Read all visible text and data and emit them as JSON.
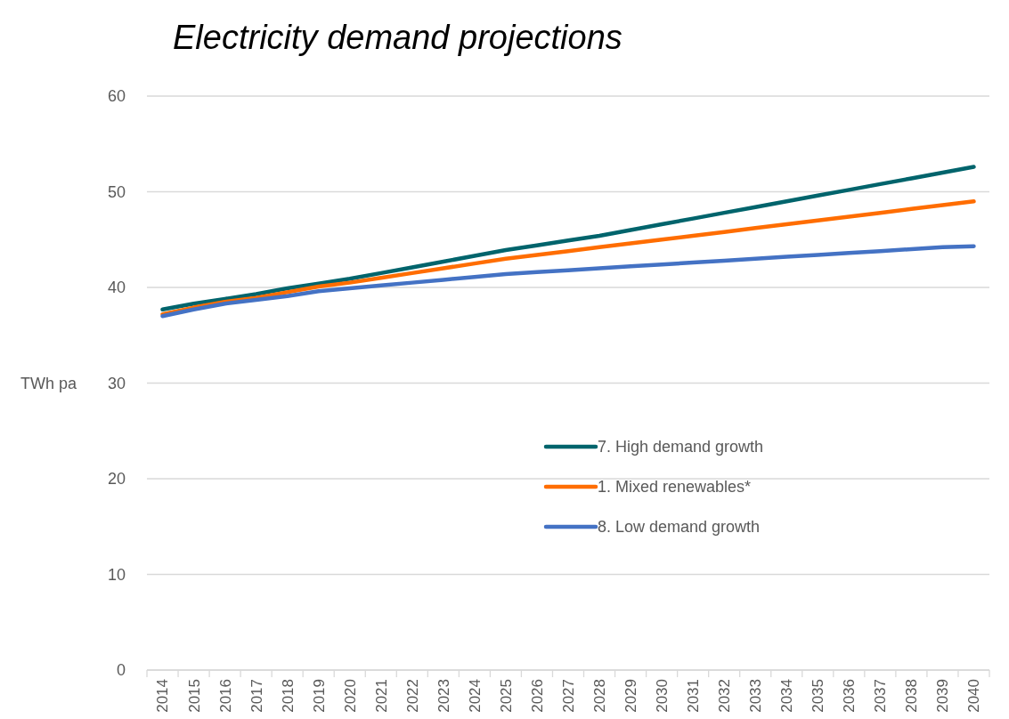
{
  "chart_data": {
    "type": "line",
    "title": "Electricity demand projections",
    "ylabel": "TWh pa",
    "categories": [
      "2014",
      "2015",
      "2016",
      "2017",
      "2018",
      "2019",
      "2020",
      "2021",
      "2022",
      "2023",
      "2024",
      "2025",
      "2026",
      "2027",
      "2028",
      "2029",
      "2030",
      "2031",
      "2032",
      "2033",
      "2034",
      "2035",
      "2036",
      "2037",
      "2038",
      "2039",
      "2040"
    ],
    "series": [
      {
        "name": "7. High demand growth",
        "color": "#00646c",
        "values": [
          37.7,
          38.3,
          38.8,
          39.3,
          39.9,
          40.4,
          40.9,
          41.5,
          42.1,
          42.7,
          43.3,
          43.9,
          44.4,
          44.9,
          45.4,
          46.0,
          46.6,
          47.2,
          47.8,
          48.4,
          49.0,
          49.6,
          50.2,
          50.8,
          51.4,
          52.0,
          52.6
        ]
      },
      {
        "name": "1. Mixed renewables*",
        "color": "#ff6d00",
        "values": [
          37.2,
          37.9,
          38.5,
          38.9,
          39.5,
          40.1,
          40.5,
          41.0,
          41.5,
          42.0,
          42.5,
          43.0,
          43.4,
          43.8,
          44.2,
          44.6,
          45.0,
          45.4,
          45.8,
          46.2,
          46.6,
          47.0,
          47.4,
          47.8,
          48.2,
          48.6,
          49.0
        ]
      },
      {
        "name": "8. Low demand growth",
        "color": "#4472c4",
        "values": [
          37.0,
          37.7,
          38.3,
          38.7,
          39.1,
          39.6,
          39.9,
          40.2,
          40.5,
          40.8,
          41.1,
          41.4,
          41.6,
          41.8,
          42.0,
          42.2,
          42.4,
          42.6,
          42.8,
          43.0,
          43.2,
          43.4,
          43.6,
          43.8,
          44.0,
          44.2,
          44.3
        ]
      }
    ],
    "ylim": [
      0,
      60
    ],
    "yticks": [
      0,
      10,
      20,
      30,
      40,
      50,
      60
    ],
    "grid": "y",
    "legend": "center",
    "marker": "none",
    "line_style": "solid"
  }
}
